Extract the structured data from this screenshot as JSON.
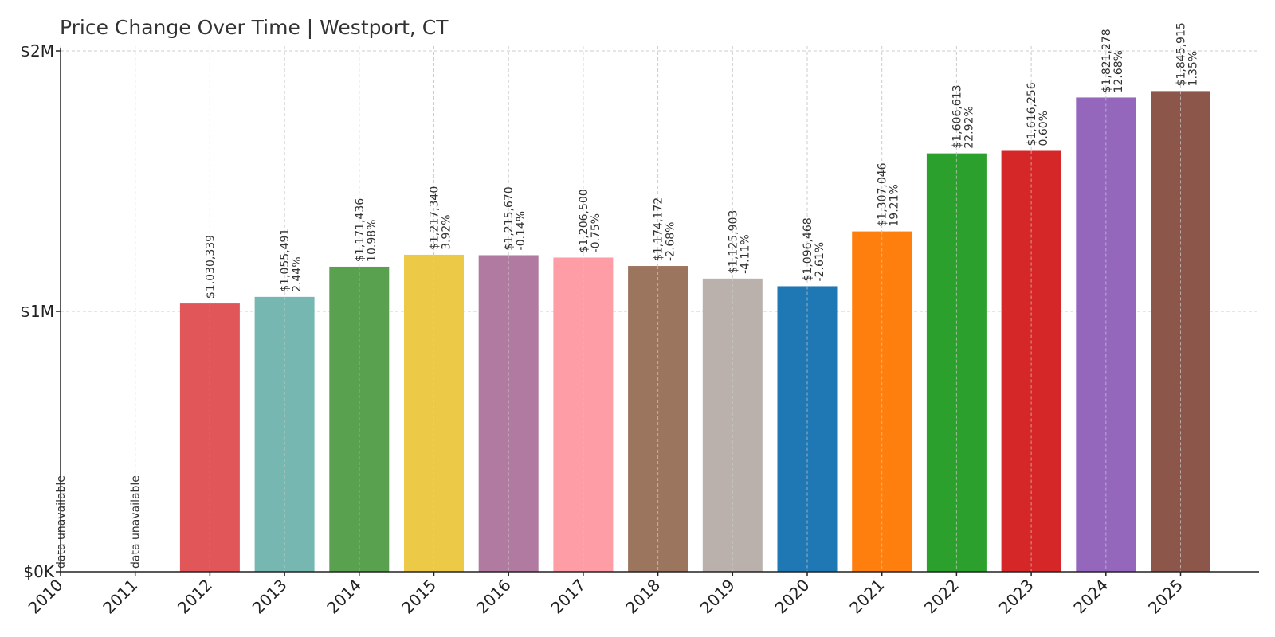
{
  "chart_data": {
    "type": "bar",
    "title": "Price Change Over Time | Westport, CT",
    "xlabel": "",
    "ylabel": "",
    "ylim": [
      0,
      2000000
    ],
    "yticks": [
      {
        "value": 0,
        "label": "$0K"
      },
      {
        "value": 1000000,
        "label": "$1M"
      },
      {
        "value": 2000000,
        "label": "$2M"
      }
    ],
    "grid": true,
    "categories": [
      "2010",
      "2011",
      "2012",
      "2013",
      "2014",
      "2015",
      "2016",
      "2017",
      "2018",
      "2019",
      "2020",
      "2021",
      "2022",
      "2023",
      "2024",
      "2025"
    ],
    "values": [
      null,
      null,
      1030339,
      1055491,
      1171436,
      1217340,
      1215670,
      1206500,
      1174172,
      1125903,
      1096468,
      1307046,
      1606613,
      1616256,
      1821278,
      1845915
    ],
    "value_labels": [
      "",
      "",
      "$1,030,339",
      "$1,055,491",
      "$1,171,436",
      "$1,217,340",
      "$1,215,670",
      "$1,206,500",
      "$1,174,172",
      "$1,125,903",
      "$1,096,468",
      "$1,307,046",
      "$1,606,613",
      "$1,616,256",
      "$1,821,278",
      "$1,845,915"
    ],
    "pct_labels": [
      "",
      "",
      "",
      "2.44%",
      "10.98%",
      "3.92%",
      "-0.14%",
      "-0.75%",
      "-2.68%",
      "-4.11%",
      "-2.61%",
      "19.21%",
      "22.92%",
      "0.60%",
      "12.68%",
      "1.35%"
    ],
    "unavailable_label": "data unavailable",
    "colors": [
      "#e15759",
      "#e15759",
      "#e15759",
      "#76b7b2",
      "#59a14f",
      "#edc948",
      "#b07aa1",
      "#ff9da7",
      "#9c755f",
      "#bab0ac",
      "#1f77b4",
      "#ff7f0e",
      "#2ca02c",
      "#d62728",
      "#9467bd",
      "#8c564b"
    ]
  }
}
